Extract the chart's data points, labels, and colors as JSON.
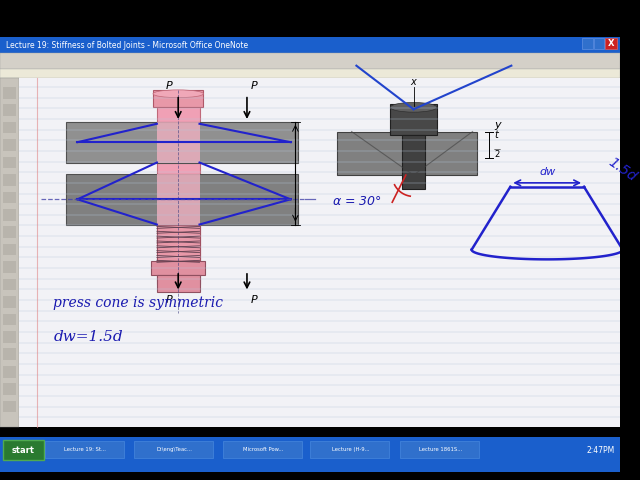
{
  "title": "Lecture 19: Stiffness of Bolted Joints - Microsoft Office OneNote",
  "bg_color": "#000000",
  "titlebar_color": "#1a5fcc",
  "toolbar_bg": "#d4d0c8",
  "page_bg": "#f0f0f4",
  "line_color": "#c0cce0",
  "sidebar_color": "#d0ccc4",
  "text_color": "#1a1ab0",
  "text1": "press cone is symmetric",
  "text2": "dw=1.5d",
  "alpha_text": "α = 30°",
  "taskbar_color": "#1a5fcc",
  "start_color": "#2a7a30"
}
